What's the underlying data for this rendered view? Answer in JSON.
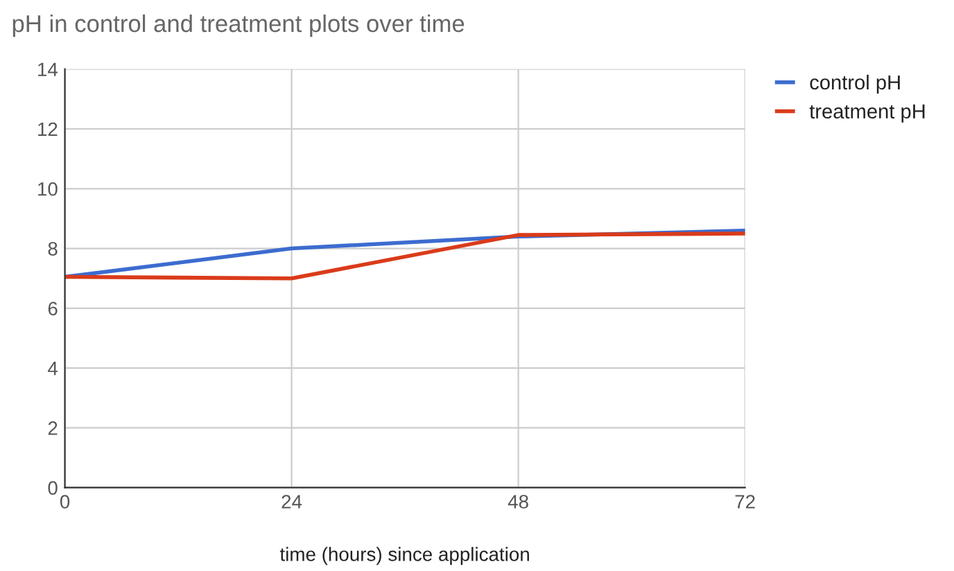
{
  "chart_data": {
    "type": "line",
    "title": "pH in control and treatment plots over time",
    "xlabel": "time (hours) since application",
    "x": [
      0,
      24,
      48,
      72
    ],
    "xlim": [
      0,
      72
    ],
    "xticks": [
      0,
      24,
      48,
      72
    ],
    "ylim": [
      0,
      14
    ],
    "yticks": [
      0,
      2,
      4,
      6,
      8,
      10,
      12,
      14
    ],
    "grid": true,
    "legend": "top right",
    "marker": "none",
    "line_style": "solid",
    "series": [
      {
        "name": "control pH",
        "color": "#3c6ccf",
        "values": [
          7.05,
          8.0,
          8.4,
          8.6
        ]
      },
      {
        "name": "treatment pH",
        "color": "#da3b1a",
        "values": [
          7.05,
          7.0,
          8.45,
          8.5
        ]
      }
    ]
  }
}
